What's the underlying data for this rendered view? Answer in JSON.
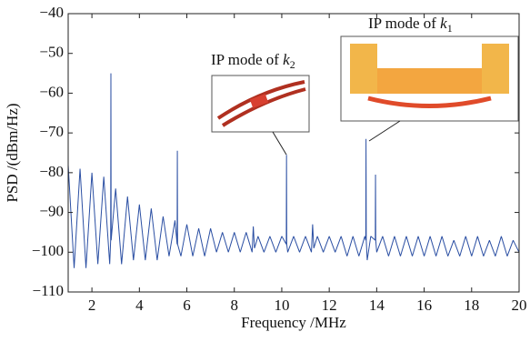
{
  "chart_data": {
    "type": "line",
    "xlabel": "Frequency /MHz",
    "ylabel": "PSD /(dBm/Hz)",
    "color": "#2b4fa3",
    "xlim": [
      1,
      20
    ],
    "xticks": [
      2,
      4,
      6,
      8,
      10,
      12,
      14,
      16,
      18,
      20
    ],
    "ylim": [
      -110,
      -40
    ],
    "yticks": [
      {
        "value": -110,
        "label": "−110"
      },
      {
        "value": -100,
        "label": "−100"
      },
      {
        "value": -90,
        "label": "−90"
      },
      {
        "value": -80,
        "label": "−80"
      },
      {
        "value": -70,
        "label": "−70"
      },
      {
        "value": -60,
        "label": "−60"
      },
      {
        "value": -50,
        "label": "−50"
      },
      {
        "value": -40,
        "label": "−40"
      }
    ],
    "annotations": [
      {
        "text": "IP mode of ",
        "var": "k",
        "sub": "2"
      },
      {
        "text": "IP mode of ",
        "var": "k",
        "sub": "1"
      }
    ],
    "x": [
      1,
      1.25,
      1.5,
      1.75,
      2,
      2.25,
      2.5,
      2.75,
      2.79,
      2.8,
      2.81,
      3,
      3.25,
      3.5,
      3.75,
      4,
      4.25,
      4.5,
      4.75,
      5,
      5.25,
      5.5,
      5.59,
      5.6,
      5.61,
      5.75,
      6,
      6.25,
      6.5,
      6.75,
      7,
      7.25,
      7.5,
      7.75,
      8,
      8.25,
      8.5,
      8.75,
      8.8,
      8.85,
      9,
      9.25,
      9.5,
      9.75,
      10,
      10.19,
      10.2,
      10.21,
      10.25,
      10.5,
      10.75,
      11,
      11.25,
      11.3,
      11.35,
      11.5,
      11.75,
      12,
      12.25,
      12.5,
      12.75,
      13,
      13.25,
      13.5,
      13.54,
      13.55,
      13.56,
      13.6,
      13.75,
      13.94,
      13.95,
      13.96,
      14,
      14.25,
      14.5,
      14.75,
      15,
      15.25,
      15.5,
      15.75,
      16,
      16.25,
      16.5,
      16.75,
      17,
      17.25,
      17.5,
      17.75,
      18,
      18.25,
      18.5,
      18.75,
      19,
      19.25,
      19.5,
      19.75,
      20
    ],
    "values": [
      -78,
      -104,
      -79,
      -104,
      -80,
      -103,
      -81,
      -103,
      -97,
      -55,
      -97,
      -84,
      -103,
      -86,
      -102,
      -88,
      -102,
      -89,
      -102,
      -91,
      -101,
      -92,
      -98,
      -74.5,
      -98,
      -101,
      -93,
      -101,
      -94,
      -101,
      -94,
      -100,
      -95,
      -100,
      -95,
      -100,
      -95,
      -100,
      -93.5,
      -99,
      -96,
      -100,
      -96,
      -100,
      -96,
      -98,
      -75.5,
      -98,
      -100,
      -96,
      -100,
      -96,
      -100,
      -93,
      -99,
      -96,
      -100,
      -96,
      -100,
      -96,
      -101,
      -96,
      -101,
      -96,
      -97,
      -71.5,
      -97,
      -102,
      -96,
      -97,
      -80.5,
      -97,
      -100,
      -96,
      -101,
      -96,
      -101,
      -96,
      -101,
      -96,
      -101,
      -96,
      -101,
      -96,
      -101,
      -97,
      -101,
      -96,
      -101,
      -96,
      -101,
      -97,
      -101,
      -96,
      -101,
      -97,
      -100
    ]
  }
}
